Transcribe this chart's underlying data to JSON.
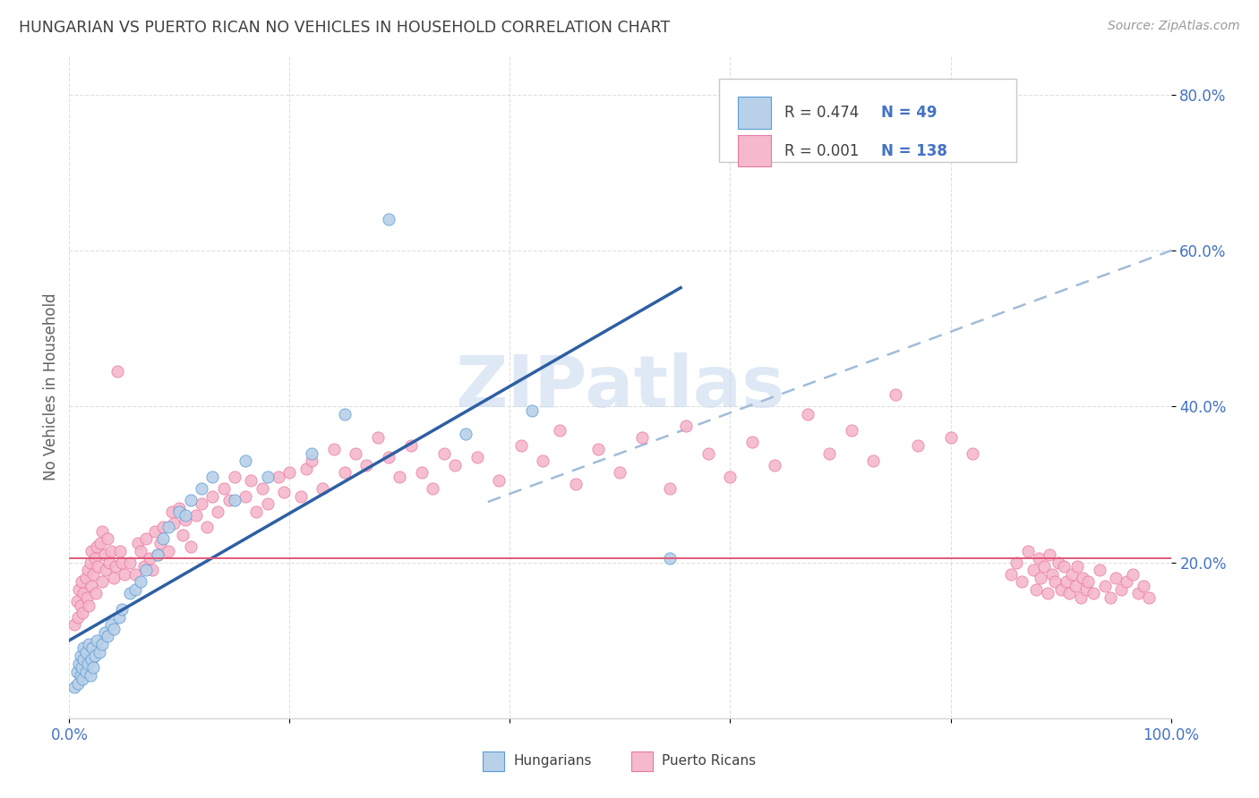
{
  "title": "HUNGARIAN VS PUERTO RICAN NO VEHICLES IN HOUSEHOLD CORRELATION CHART",
  "source": "Source: ZipAtlas.com",
  "ylabel": "No Vehicles in Household",
  "xlim": [
    0.0,
    1.0
  ],
  "ylim": [
    0.0,
    0.85
  ],
  "x_ticks": [
    0.0,
    0.2,
    0.4,
    0.6,
    0.8,
    1.0
  ],
  "x_tick_labels": [
    "0.0%",
    "",
    "",
    "",
    "",
    "100.0%"
  ],
  "y_ticks": [
    0.2,
    0.4,
    0.6,
    0.8
  ],
  "y_tick_labels": [
    "20.0%",
    "40.0%",
    "60.0%",
    "80.0%"
  ],
  "hungarian_R": "0.474",
  "hungarian_N": "49",
  "puerto_rican_R": "0.001",
  "puerto_rican_N": "138",
  "hungarian_fill_color": "#b8d0e8",
  "puerto_rican_fill_color": "#f5b8cc",
  "hungarian_edge_color": "#5b9bd5",
  "puerto_rican_edge_color": "#e87aa0",
  "hungarian_line_color": "#2e5fa3",
  "puerto_rican_line_color": "#a0bcd8",
  "horizontal_line_color": "#e05878",
  "horizontal_line_y": 0.205,
  "background_color": "#ffffff",
  "grid_color": "#d8d8d8",
  "watermark_color": "#c5d8ed",
  "label_color": "#4472c4",
  "title_color": "#404040",
  "axis_label_color": "#606060",
  "legend_border_color": "#c8c8c8"
}
